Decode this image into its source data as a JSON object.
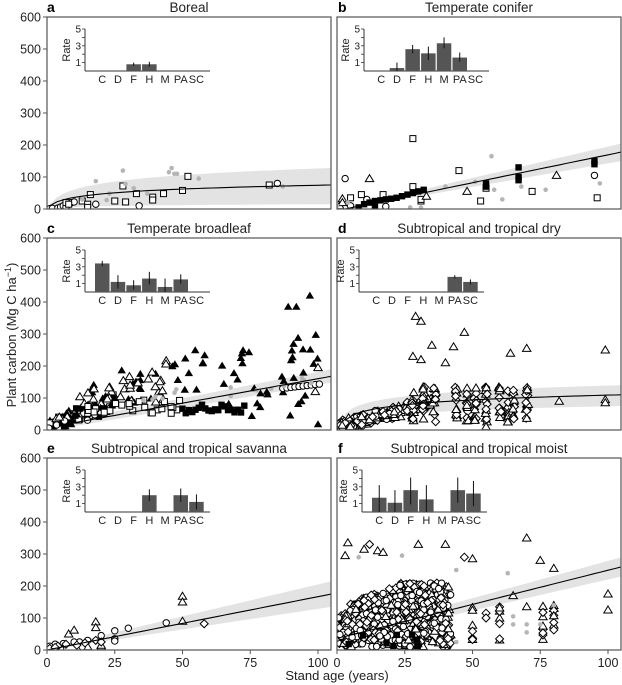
{
  "figure": {
    "ylabel": "Plant carbon (Mg C ha",
    "ylabel_sup": "−1",
    "ylabel_end": ")",
    "xlabel": "Stand age (years)"
  },
  "chart_data": {
    "type": "scatter",
    "xlabel": "Stand age (years)",
    "ylabel": "Plant carbon (Mg C ha−1)",
    "xlim": [
      0,
      105
    ],
    "ylim": [
      0,
      600
    ],
    "x_ticks": [
      0,
      25,
      50,
      75,
      100
    ],
    "y_ticks": [
      0,
      100,
      200,
      300,
      400,
      500,
      600
    ],
    "inset": {
      "ylabel": "Rate",
      "ylim": [
        0,
        5
      ],
      "y_ticks_labeled": [
        1,
        3,
        5
      ],
      "categories": [
        "C",
        "D",
        "F",
        "H",
        "M",
        "PA",
        "SC"
      ]
    },
    "panels": [
      {
        "letter": "a",
        "title": "Boreal",
        "fit": {
          "type": "log",
          "start": [
            1,
            10
          ],
          "end": [
            105,
            75
          ],
          "band_start": [
            1,
            0,
            15
          ],
          "band_end": [
            105,
            15,
            128
          ]
        },
        "inset_values": [
          null,
          null,
          0.8,
          0.8,
          null,
          null,
          null
        ],
        "inset_errors": [
          null,
          null,
          [
            0.6,
            1.0
          ],
          [
            0.5,
            1.1
          ],
          null,
          null,
          null
        ],
        "points": [
          {
            "m": "circle",
            "x": 1,
            "y": 1
          },
          {
            "m": "circle",
            "x": 2,
            "y": 2
          },
          {
            "m": "circle",
            "x": 4,
            "y": 3
          },
          {
            "m": "circle",
            "x": 5,
            "y": 6
          },
          {
            "m": "circle",
            "x": 6,
            "y": 10
          },
          {
            "m": "circle",
            "x": 7,
            "y": 6
          },
          {
            "m": "circle",
            "x": 9,
            "y": 20
          },
          {
            "m": "circle",
            "x": 10,
            "y": 22
          },
          {
            "m": "circle",
            "x": 18,
            "y": 15
          },
          {
            "m": "circle",
            "x": 34,
            "y": 10
          },
          {
            "m": "circle",
            "x": 85,
            "y": 80
          },
          {
            "m": "square",
            "x": 7,
            "y": 20
          },
          {
            "m": "square",
            "x": 8,
            "y": 15
          },
          {
            "m": "square",
            "x": 13,
            "y": 25
          },
          {
            "m": "square",
            "x": 15,
            "y": 15
          },
          {
            "m": "square",
            "x": 15,
            "y": 5
          },
          {
            "m": "square",
            "x": 16,
            "y": 45
          },
          {
            "m": "square",
            "x": 25,
            "y": 25
          },
          {
            "m": "square",
            "x": 28,
            "y": 72
          },
          {
            "m": "square",
            "x": 29,
            "y": 22
          },
          {
            "m": "square",
            "x": 33,
            "y": 48
          },
          {
            "m": "square",
            "x": 39,
            "y": 37
          },
          {
            "m": "square",
            "x": 39,
            "y": 28
          },
          {
            "m": "square",
            "x": 43,
            "y": 48
          },
          {
            "m": "square",
            "x": 50,
            "y": 58
          },
          {
            "m": "square",
            "x": 52,
            "y": 102
          },
          {
            "m": "square",
            "x": 82,
            "y": 75
          },
          {
            "m": "gray",
            "x": 13,
            "y": 30
          },
          {
            "m": "gray",
            "x": 18,
            "y": 87
          },
          {
            "m": "gray",
            "x": 22,
            "y": 28
          },
          {
            "m": "gray",
            "x": 23,
            "y": 48
          },
          {
            "m": "gray",
            "x": 28,
            "y": 120
          },
          {
            "m": "gray",
            "x": 29,
            "y": 78
          },
          {
            "m": "gray",
            "x": 32,
            "y": 65
          },
          {
            "m": "gray",
            "x": 37,
            "y": 48
          },
          {
            "m": "gray",
            "x": 45,
            "y": 115
          },
          {
            "m": "gray",
            "x": 46,
            "y": 128
          },
          {
            "m": "gray",
            "x": 47,
            "y": 110
          },
          {
            "m": "gray",
            "x": 48,
            "y": 110
          },
          {
            "m": "gray",
            "x": 56,
            "y": 95
          },
          {
            "m": "gray",
            "x": 87,
            "y": 70
          }
        ]
      },
      {
        "letter": "b",
        "title": "Temperate conifer",
        "fit": {
          "type": "linear",
          "start": [
            3,
            0
          ],
          "end": [
            105,
            178
          ],
          "band_start": [
            3,
            0,
            5
          ],
          "band_end": [
            105,
            150,
            205
          ]
        },
        "inset_values": [
          null,
          0.35,
          2.6,
          2.1,
          3.3,
          1.6,
          null
        ],
        "inset_errors": [
          null,
          [
            0.0,
            1.0
          ],
          [
            2.1,
            3.1
          ],
          [
            1.3,
            2.9
          ],
          [
            2.7,
            4.0
          ],
          [
            1.1,
            2.2
          ],
          null
        ],
        "points": [
          {
            "m": "circle",
            "x": 3,
            "y": 95
          },
          {
            "m": "circle",
            "x": 1,
            "y": 5
          },
          {
            "m": "circle",
            "x": 5,
            "y": 10
          },
          {
            "m": "circle",
            "x": 11,
            "y": 30
          },
          {
            "m": "circle",
            "x": 18,
            "y": 8
          },
          {
            "m": "circle",
            "x": 95,
            "y": 105
          },
          {
            "m": "square",
            "x": 5,
            "y": 35
          },
          {
            "m": "square",
            "x": 9,
            "y": 45
          },
          {
            "m": "square",
            "x": 17,
            "y": 45
          },
          {
            "m": "square",
            "x": 28,
            "y": 220
          },
          {
            "m": "square",
            "x": 28,
            "y": 70
          },
          {
            "m": "square",
            "x": 31,
            "y": 25
          },
          {
            "m": "square",
            "x": 31,
            "y": 30
          },
          {
            "m": "square",
            "x": 53,
            "y": 25
          },
          {
            "m": "square",
            "x": 45,
            "y": 120
          },
          {
            "m": "square",
            "x": 72,
            "y": 55
          },
          {
            "m": "square",
            "x": 96,
            "y": 35
          },
          {
            "m": "square",
            "x": 55,
            "y": 65
          },
          {
            "m": "triangle",
            "x": 1,
            "y": 10
          },
          {
            "m": "triangle",
            "x": 2,
            "y": 32
          },
          {
            "m": "triangle",
            "x": 2,
            "y": 20
          },
          {
            "m": "triangle",
            "x": 12,
            "y": 95
          },
          {
            "m": "triangle",
            "x": 33,
            "y": 40
          },
          {
            "m": "triangle",
            "x": 48,
            "y": 55
          },
          {
            "m": "triangle",
            "x": 81,
            "y": 105
          },
          {
            "m": "square-filled",
            "x": 10,
            "y": 15
          },
          {
            "m": "square-filled",
            "x": 12,
            "y": 20
          },
          {
            "m": "square-filled",
            "x": 14,
            "y": 25
          },
          {
            "m": "square-filled",
            "x": 16,
            "y": 27
          },
          {
            "m": "square-filled",
            "x": 18,
            "y": 30
          },
          {
            "m": "square-filled",
            "x": 20,
            "y": 32
          },
          {
            "m": "square-filled",
            "x": 22,
            "y": 35
          },
          {
            "m": "square-filled",
            "x": 24,
            "y": 40
          },
          {
            "m": "square-filled",
            "x": 26,
            "y": 45
          },
          {
            "m": "square-filled",
            "x": 28,
            "y": 50
          },
          {
            "m": "square-filled",
            "x": 30,
            "y": 55
          },
          {
            "m": "square-filled",
            "x": 32,
            "y": 60
          },
          {
            "m": "square-filled",
            "x": 55,
            "y": 80
          },
          {
            "m": "square-filled",
            "x": 55,
            "y": 70
          },
          {
            "m": "square-filled",
            "x": 67,
            "y": 100
          },
          {
            "m": "square-filled",
            "x": 67,
            "y": 90
          },
          {
            "m": "square-filled",
            "x": 67,
            "y": 130
          },
          {
            "m": "square-filled",
            "x": 95,
            "y": 150
          },
          {
            "m": "square-filled",
            "x": 95,
            "y": 140
          },
          {
            "m": "square-filled",
            "x": 8,
            "y": 5
          },
          {
            "m": "square-filled",
            "x": 14,
            "y": 10
          },
          {
            "m": "gray",
            "x": 0,
            "y": 10
          },
          {
            "m": "gray",
            "x": 27,
            "y": 5
          },
          {
            "m": "gray",
            "x": 31,
            "y": 5
          },
          {
            "m": "gray",
            "x": 40,
            "y": 70
          },
          {
            "m": "gray",
            "x": 51,
            "y": 85
          },
          {
            "m": "gray",
            "x": 57,
            "y": 165
          },
          {
            "m": "gray",
            "x": 58,
            "y": 60
          },
          {
            "m": "gray",
            "x": 61,
            "y": 30
          },
          {
            "m": "gray",
            "x": 68,
            "y": 70
          },
          {
            "m": "gray",
            "x": 77,
            "y": 60
          },
          {
            "m": "gray",
            "x": 97,
            "y": 80
          },
          {
            "m": "gray",
            "x": 4,
            "y": 20
          }
        ]
      },
      {
        "letter": "c",
        "title": "Temperate broadleaf",
        "fit": {
          "type": "linear",
          "start": [
            5,
            15
          ],
          "end": [
            105,
            168
          ],
          "band_start": [
            5,
            5,
            25
          ],
          "band_end": [
            105,
            148,
            190
          ]
        },
        "inset_values": [
          3.4,
          1.2,
          0.8,
          1.6,
          0.6,
          1.5,
          null
        ],
        "inset_errors": [
          [
            3.1,
            3.7
          ],
          [
            0.4,
            2.0
          ],
          [
            0.3,
            1.4
          ],
          [
            0.9,
            2.4
          ],
          [
            0.0,
            1.6
          ],
          [
            1.0,
            2.1
          ],
          null
        ]
      },
      {
        "letter": "d",
        "title": "Subtropical and tropical dry",
        "fit": {
          "type": "log",
          "start": [
            3,
            30
          ],
          "end": [
            105,
            110
          ],
          "band_start": [
            3,
            10,
            50
          ],
          "band_end": [
            105,
            75,
            140
          ]
        },
        "inset_values": [
          null,
          null,
          null,
          null,
          null,
          1.8,
          1.2
        ],
        "inset_errors": [
          null,
          null,
          null,
          null,
          null,
          [
            1.6,
            2.0
          ],
          [
            0.9,
            1.5
          ]
        ]
      },
      {
        "letter": "e",
        "title": "Subtropical and tropical savanna",
        "fit": {
          "type": "linear",
          "start": [
            0,
            0
          ],
          "end": [
            105,
            175
          ],
          "band_start": [
            0,
            0,
            5
          ],
          "band_end": [
            105,
            135,
            215
          ]
        },
        "inset_values": [
          null,
          null,
          null,
          2.0,
          null,
          2.0,
          1.2
        ],
        "inset_errors": [
          null,
          null,
          null,
          [
            1.3,
            2.7
          ],
          null,
          [
            1.2,
            2.8
          ],
          [
            0.3,
            2.1
          ]
        ],
        "points": [
          {
            "m": "triangle",
            "x": 8,
            "y": 50
          },
          {
            "m": "triangle",
            "x": 10,
            "y": 62
          },
          {
            "m": "triangle",
            "x": 18,
            "y": 88
          },
          {
            "m": "triangle",
            "x": 18,
            "y": 70
          },
          {
            "m": "triangle",
            "x": 20,
            "y": 10
          },
          {
            "m": "triangle",
            "x": 20,
            "y": 15
          },
          {
            "m": "triangle",
            "x": 50,
            "y": 168
          },
          {
            "m": "triangle",
            "x": 50,
            "y": 150
          },
          {
            "m": "triangle",
            "x": 50,
            "y": 90
          },
          {
            "m": "triangle",
            "x": 15,
            "y": 10
          },
          {
            "m": "triangle",
            "x": 2,
            "y": 5
          },
          {
            "m": "circle",
            "x": 25,
            "y": 60
          },
          {
            "m": "circle",
            "x": 25,
            "y": 35
          },
          {
            "m": "circle",
            "x": 25,
            "y": 28
          },
          {
            "m": "circle",
            "x": 30,
            "y": 68
          },
          {
            "m": "circle",
            "x": 44,
            "y": 85
          },
          {
            "m": "circle",
            "x": 20,
            "y": 45
          },
          {
            "m": "circle",
            "x": 15,
            "y": 30
          },
          {
            "m": "circle",
            "x": 12,
            "y": 25
          },
          {
            "m": "circle",
            "x": 10,
            "y": 25
          },
          {
            "m": "circle",
            "x": 3,
            "y": 18
          },
          {
            "m": "circle",
            "x": 1,
            "y": 12
          },
          {
            "m": "circle",
            "x": 6,
            "y": 20
          },
          {
            "m": "circle",
            "x": 13,
            "y": 10
          },
          {
            "m": "circle",
            "x": 5,
            "y": 5
          },
          {
            "m": "diamond",
            "x": 58,
            "y": 82
          },
          {
            "m": "diamond",
            "x": 18,
            "y": 30
          },
          {
            "m": "diamond",
            "x": 20,
            "y": 25
          },
          {
            "m": "diamond",
            "x": 1,
            "y": 5
          },
          {
            "m": "diamond",
            "x": 4,
            "y": 12
          },
          {
            "m": "diamond",
            "x": 7,
            "y": 18
          },
          {
            "m": "diamond",
            "x": 11,
            "y": 15
          },
          {
            "m": "diamond",
            "x": 14,
            "y": 22
          },
          {
            "m": "diamond",
            "x": 3,
            "y": 8
          }
        ]
      },
      {
        "letter": "f",
        "title": "Subtropical and tropical moist",
        "fit": {
          "type": "linear",
          "start": [
            2,
            40
          ],
          "end": [
            105,
            260
          ],
          "band_start": [
            2,
            30,
            50
          ],
          "band_end": [
            105,
            230,
            290
          ]
        },
        "inset_values": [
          1.7,
          1.1,
          2.6,
          1.5,
          null,
          2.6,
          2.2
        ],
        "inset_errors": [
          [
            0.0,
            3.2
          ],
          [
            0.0,
            2.6
          ],
          [
            0.9,
            4.1
          ],
          [
            0.0,
            3.2
          ],
          null,
          [
            1.1,
            4.1
          ],
          [
            0.7,
            3.7
          ]
        ]
      }
    ]
  }
}
